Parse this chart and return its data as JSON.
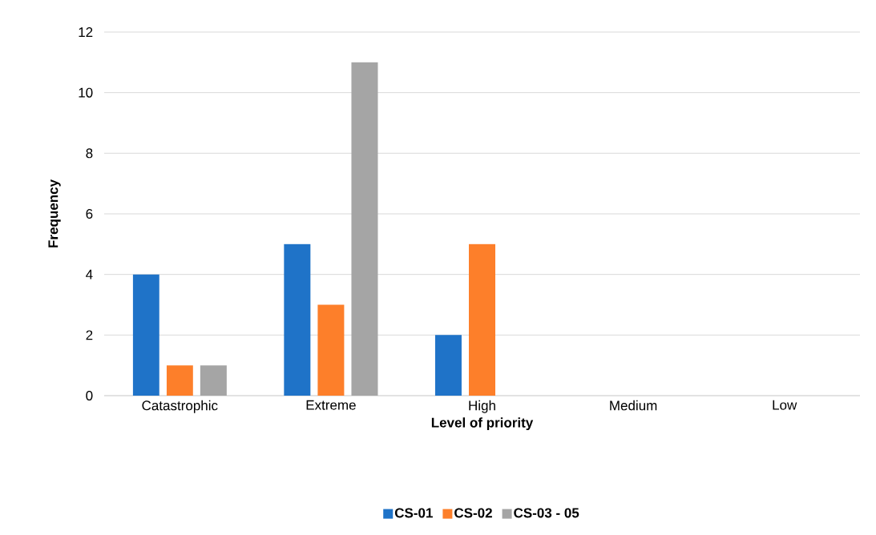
{
  "chart_data": {
    "type": "bar",
    "xlabel": "Level of priority",
    "ylabel": "Frequency",
    "categories": [
      "Catastrophic",
      "Extreme",
      "High",
      "Medium",
      "Low"
    ],
    "series": [
      {
        "name": "CS-01",
        "color": "#1f73c8",
        "values": [
          4,
          5,
          2,
          0,
          0
        ]
      },
      {
        "name": "CS-02",
        "color": "#fd7f2a",
        "values": [
          1,
          3,
          5,
          0,
          0
        ]
      },
      {
        "name": "CS-03 - 05",
        "color": "#a5a5a5",
        "values": [
          1,
          11,
          0,
          0,
          0
        ]
      }
    ],
    "ylim": [
      0,
      12
    ],
    "yticks": [
      0,
      2,
      4,
      6,
      8,
      10,
      12
    ],
    "grid": "y",
    "legend": "bottom"
  }
}
